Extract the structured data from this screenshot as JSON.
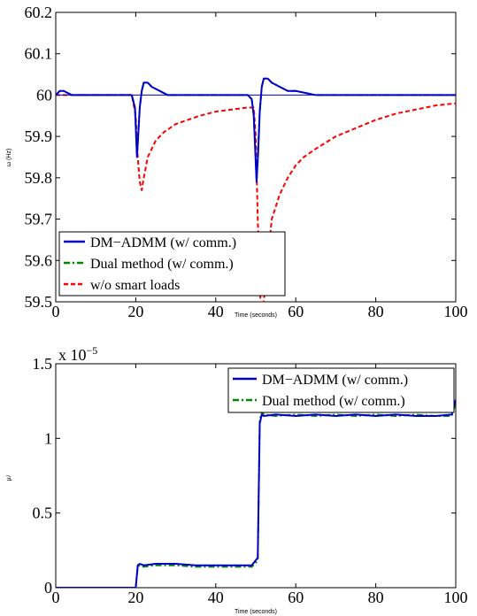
{
  "chart_data": [
    {
      "type": "line",
      "xlabel": "Time (seconds)",
      "ylabel": "ω (Hz)",
      "xlim": [
        0,
        100
      ],
      "ylim": [
        59.5,
        60.2
      ],
      "xticks": [
        "0",
        "20",
        "40",
        "60",
        "80",
        "100"
      ],
      "yticks": [
        "59.5",
        "59.6",
        "59.7",
        "59.8",
        "59.9",
        "60",
        "60.1",
        "60.2"
      ],
      "legend_position": "bottom-left",
      "series": [
        {
          "name": "DM−ADMM (w/ comm.)",
          "color": "#0000cc",
          "style": "solid",
          "x": [
            0,
            1,
            2,
            4,
            6,
            8,
            10,
            12,
            14,
            16,
            18,
            19,
            19.8,
            20.3,
            20.6,
            21,
            21.5,
            22,
            23,
            24,
            26,
            28,
            30,
            35,
            40,
            45,
            48,
            49,
            49.5,
            50.2,
            50.6,
            51,
            51.5,
            52,
            53,
            54,
            56,
            58,
            60,
            65,
            70,
            75,
            80,
            85,
            90,
            95,
            100
          ],
          "y": [
            60.0,
            60.01,
            60.01,
            60.0,
            60.0,
            60.0,
            60.0,
            60.0,
            60.0,
            60.0,
            60.0,
            60.0,
            59.97,
            59.85,
            59.9,
            59.97,
            60.01,
            60.03,
            60.03,
            60.02,
            60.01,
            60.0,
            60.0,
            60.0,
            60.0,
            60.0,
            60.0,
            59.99,
            59.95,
            59.79,
            59.86,
            59.96,
            60.02,
            60.04,
            60.04,
            60.03,
            60.02,
            60.01,
            60.01,
            60.0,
            60.0,
            60.0,
            60.0,
            60.0,
            60.0,
            60.0,
            60.0
          ]
        },
        {
          "name": "Dual method (w/ comm.)",
          "color": "#008800",
          "style": "dashdot",
          "x": [
            0,
            1,
            2,
            4,
            6,
            8,
            10,
            12,
            14,
            16,
            18,
            19,
            19.8,
            20.3,
            20.6,
            21,
            21.5,
            22,
            23,
            24,
            26,
            28,
            30,
            35,
            40,
            45,
            48,
            49,
            49.5,
            50.2,
            50.6,
            51,
            51.5,
            52,
            53,
            54,
            56,
            58,
            60,
            65,
            70,
            75,
            80,
            85,
            90,
            95,
            100
          ],
          "y": [
            60.0,
            60.01,
            60.01,
            60.0,
            60.0,
            60.0,
            60.0,
            60.0,
            60.0,
            60.0,
            60.0,
            60.0,
            59.97,
            59.86,
            59.9,
            59.97,
            60.01,
            60.03,
            60.03,
            60.02,
            60.01,
            60.0,
            60.0,
            60.0,
            60.0,
            60.0,
            60.0,
            59.99,
            59.95,
            59.8,
            59.87,
            59.96,
            60.02,
            60.04,
            60.04,
            60.03,
            60.02,
            60.01,
            60.01,
            60.0,
            60.0,
            60.0,
            60.0,
            60.0,
            60.0,
            60.0,
            60.0
          ]
        },
        {
          "name": "w/o smart loads",
          "color": "#ff0000",
          "style": "dashed",
          "x": [
            0,
            5,
            10,
            15,
            19,
            20,
            20.5,
            21,
            21.5,
            22,
            23,
            25,
            27,
            30,
            33,
            36,
            40,
            44,
            48,
            49.5,
            50,
            50.5,
            51,
            51.5,
            52,
            53,
            54,
            56,
            58,
            60,
            62,
            65,
            70,
            75,
            80,
            85,
            90,
            95,
            100
          ],
          "y": [
            60.0,
            60.0,
            60.0,
            60.0,
            60.0,
            59.95,
            59.85,
            59.79,
            59.77,
            59.8,
            59.85,
            59.89,
            59.91,
            59.93,
            59.94,
            59.95,
            59.96,
            59.965,
            59.97,
            59.97,
            59.9,
            59.7,
            59.55,
            59.42,
            59.5,
            59.6,
            59.7,
            59.76,
            59.8,
            59.83,
            59.85,
            59.87,
            59.9,
            59.92,
            59.94,
            59.955,
            59.965,
            59.975,
            59.98
          ]
        },
        {
          "name": "",
          "color": "#0000cc",
          "style": "solid-thin",
          "x": [
            0,
            100
          ],
          "y": [
            60.0,
            60.0
          ]
        }
      ],
      "legend": [
        "DM−ADMM (w/ comm.)",
        "Dual method (w/ comm.)",
        "w/o smart loads"
      ]
    },
    {
      "type": "line",
      "xlabel": "Time (seconds)",
      "ylabel": "μᵢᵗ",
      "exponent_label": "x 10",
      "exponent_power": "−5",
      "xlim": [
        0,
        100
      ],
      "ylim": [
        0,
        1.5
      ],
      "xticks": [
        "0",
        "20",
        "40",
        "60",
        "80",
        "100"
      ],
      "yticks": [
        "0",
        "0.5",
        "1",
        "1.5"
      ],
      "legend_position": "top-right",
      "series": [
        {
          "name": "DM−ADMM (w/ comm.)",
          "color": "#0000cc",
          "style": "solid",
          "x": [
            0,
            10,
            20,
            20.5,
            21,
            22,
            25,
            30,
            35,
            40,
            45,
            49,
            50.5,
            51,
            51.5,
            52,
            55,
            60,
            65,
            70,
            75,
            80,
            85,
            90,
            95,
            99,
            100
          ],
          "y": [
            0,
            0,
            0,
            0.15,
            0.16,
            0.15,
            0.16,
            0.16,
            0.15,
            0.15,
            0.15,
            0.15,
            0.2,
            1.1,
            1.16,
            1.15,
            1.16,
            1.15,
            1.16,
            1.15,
            1.16,
            1.15,
            1.16,
            1.15,
            1.15,
            1.16,
            1.26
          ]
        },
        {
          "name": "Dual method (w/ comm.)",
          "color": "#008800",
          "style": "dashdot",
          "x": [
            0,
            10,
            20,
            20.5,
            21,
            22,
            25,
            30,
            35,
            40,
            45,
            49,
            50.5,
            51,
            51.5,
            52,
            55,
            60,
            65,
            70,
            75,
            80,
            85,
            90,
            95,
            99,
            100
          ],
          "y": [
            0,
            0,
            0,
            0.14,
            0.15,
            0.14,
            0.15,
            0.15,
            0.14,
            0.14,
            0.14,
            0.14,
            0.18,
            1.12,
            1.18,
            1.16,
            1.15,
            1.16,
            1.15,
            1.16,
            1.15,
            1.16,
            1.15,
            1.16,
            1.15,
            1.15,
            1.24
          ]
        }
      ],
      "legend": [
        "DM−ADMM (w/ comm.)",
        "Dual method (w/ comm.)"
      ]
    }
  ]
}
